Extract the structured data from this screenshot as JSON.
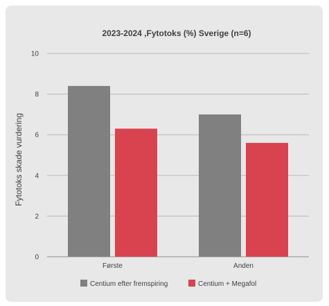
{
  "chart_data": {
    "type": "bar",
    "title": "2023-2024 ,Fytotoks (%) Sverige (n=6)",
    "ylabel": "Fytotoks skade vurdering",
    "xlabel": "",
    "categories": [
      "Første",
      "Anden"
    ],
    "series": [
      {
        "name": "Centium efter fremspiring",
        "values": [
          8.4,
          7.0
        ],
        "color": "#808080"
      },
      {
        "name": "Centium + Megafol",
        "values": [
          6.3,
          5.6
        ],
        "color": "#d9434f"
      }
    ],
    "ylim": [
      0,
      10
    ],
    "yticks": [
      0,
      2,
      4,
      6,
      8,
      10
    ],
    "grid": true,
    "legend_position": "bottom"
  }
}
